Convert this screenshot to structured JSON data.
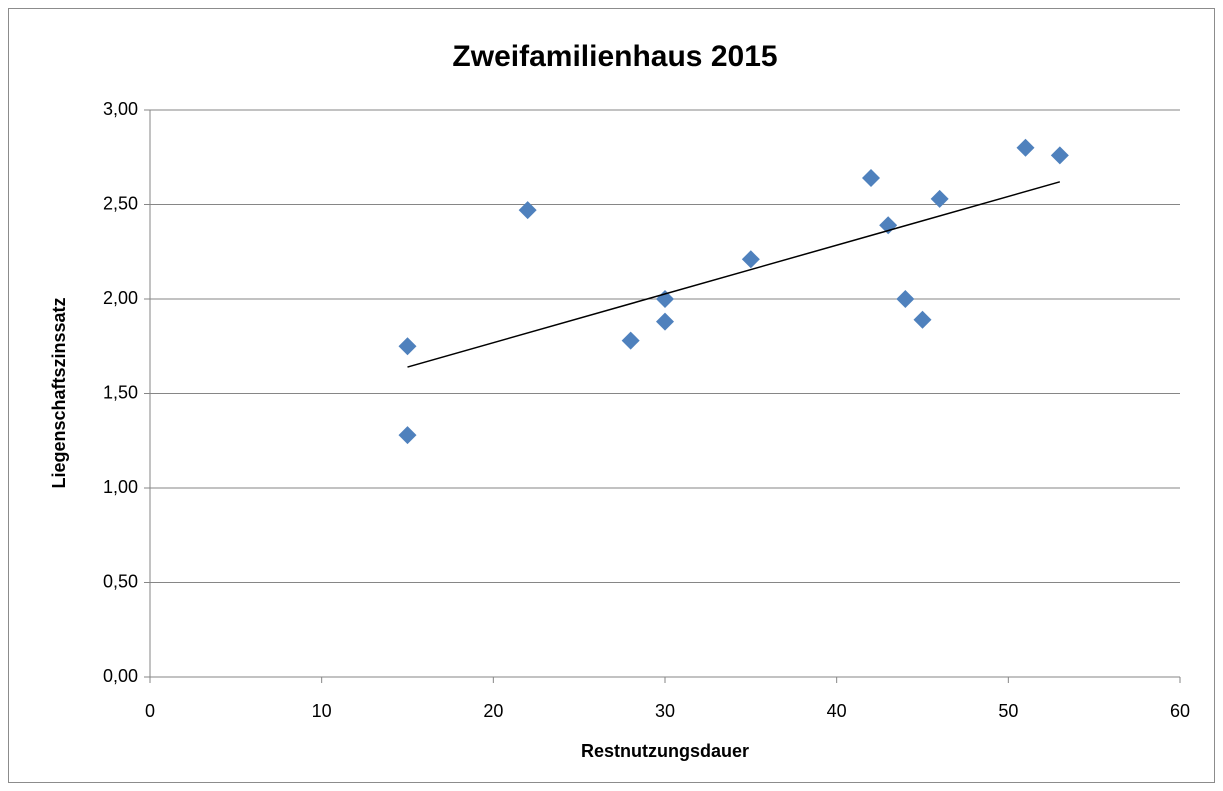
{
  "chart_data": {
    "type": "scatter",
    "title": "Zweifamilienhaus 2015",
    "x_label": "Restnutzungsdauer",
    "y_label": "Liegenschaftszinssatz",
    "series": [
      {
        "color": "#4f81bd",
        "x": [
          15,
          15,
          22,
          28,
          30,
          30,
          35,
          42,
          43,
          44,
          45,
          46,
          51,
          53
        ],
        "values": [
          1.75,
          1.28,
          2.47,
          1.78,
          2.0,
          1.88,
          2.21,
          2.64,
          2.39,
          2.0,
          1.89,
          2.53,
          2.8,
          2.76
        ]
      }
    ],
    "trendline": {
      "color": "#000000",
      "x": [
        15,
        53
      ],
      "values": [
        1.64,
        2.62
      ]
    },
    "xlim": [
      0,
      60
    ],
    "xticks": [
      0,
      10,
      20,
      30,
      40,
      50,
      60
    ],
    "ylim": [
      0,
      3
    ],
    "yticks": [
      {
        "value": 0,
        "label": "0,00"
      },
      {
        "value": 0.5,
        "label": "0,50"
      },
      {
        "value": 1,
        "label": "1,00"
      },
      {
        "value": 1.5,
        "label": "1,50"
      },
      {
        "value": 2,
        "label": "2,00"
      },
      {
        "value": 2.5,
        "label": "2,50"
      },
      {
        "value": 3,
        "label": "3,00"
      }
    ],
    "grid": true
  }
}
